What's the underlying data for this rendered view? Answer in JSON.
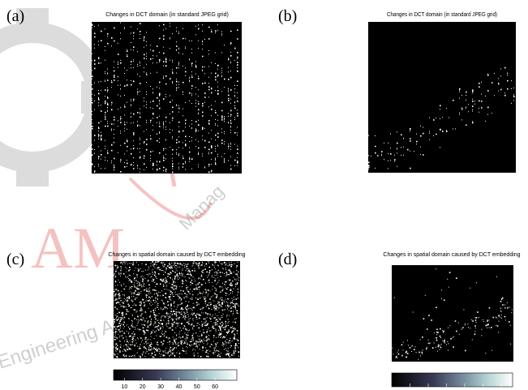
{
  "panels": [
    {
      "label": "(a)",
      "title": "Changes in DCT domain (in standard JPEG grid)"
    },
    {
      "label": "(b)",
      "title": "Changes in DCT domain (in standard JPEG grid)"
    },
    {
      "label": "(c)",
      "title": "Changes in spatial domain caused by DCT embedding",
      "colorbar": {
        "clim": [
          4,
          72
        ],
        "ticks": [
          10,
          20,
          30,
          40,
          50,
          60
        ]
      }
    },
    {
      "label": "(d)",
      "title": "Changes in spatial domain caused by DCT embedding"
    }
  ],
  "watermark": {
    "logo": "AM",
    "lower": "Engineering A",
    "diagonal": "Manag"
  }
}
